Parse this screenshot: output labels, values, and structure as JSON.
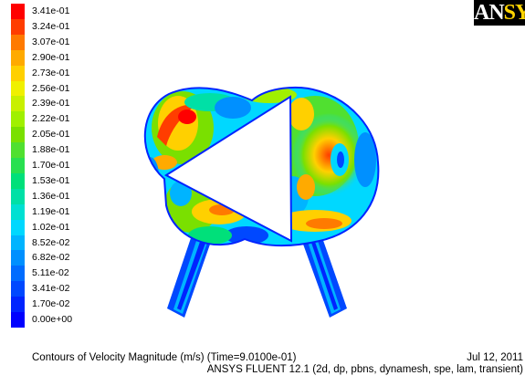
{
  "legend": {
    "labels": [
      "3.41e-01",
      "3.24e-01",
      "3.07e-01",
      "2.90e-01",
      "2.73e-01",
      "2.56e-01",
      "2.39e-01",
      "2.22e-01",
      "2.05e-01",
      "1.88e-01",
      "1.70e-01",
      "1.53e-01",
      "1.36e-01",
      "1.19e-01",
      "1.02e-01",
      "8.52e-02",
      "6.82e-02",
      "5.11e-02",
      "3.41e-02",
      "1.70e-02",
      "0.00e+00"
    ],
    "colors": [
      "#ff0000",
      "#ff3d00",
      "#ff7a00",
      "#ffaa00",
      "#ffd000",
      "#f0f000",
      "#c8f000",
      "#a0f000",
      "#7ae000",
      "#50e030",
      "#28e050",
      "#00e07a",
      "#00e0a6",
      "#00e0d2",
      "#00d8ff",
      "#00b4ff",
      "#0090ff",
      "#006cff",
      "#0048ff",
      "#0024ff",
      "#0000ff"
    ]
  },
  "logo": {
    "text_main": "AN",
    "text_accent": "SYS"
  },
  "caption": {
    "title": "Contours of Velocity Magnitude (m/s)  (Time=9.0100e-01)",
    "date": "Jul 12, 2011",
    "subtitle": "ANSYS FLUENT 12.1 (2d, dp, pbns, dynamesh, spe, lam, transient)"
  }
}
